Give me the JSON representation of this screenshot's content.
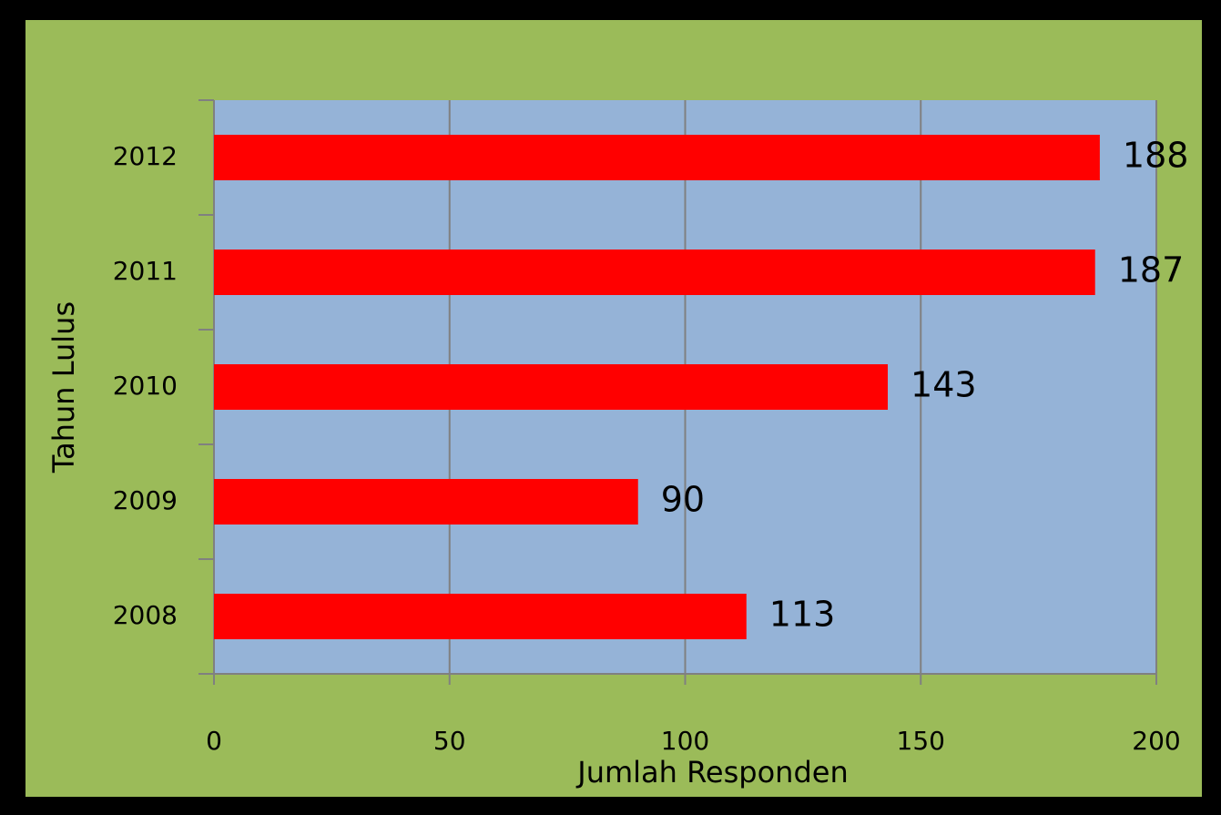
{
  "chart_data": {
    "type": "bar",
    "orientation": "horizontal",
    "categories": [
      "2008",
      "2009",
      "2010",
      "2011",
      "2012"
    ],
    "values": [
      113,
      90,
      143,
      187,
      188
    ],
    "color": "#ff0000",
    "xlabel": "Jumlah Responden",
    "ylabel": "Tahun Lulus",
    "xlim": [
      0,
      200
    ],
    "xticks": [
      0,
      50,
      100,
      150,
      200
    ],
    "grid": true,
    "data_labels": true
  }
}
